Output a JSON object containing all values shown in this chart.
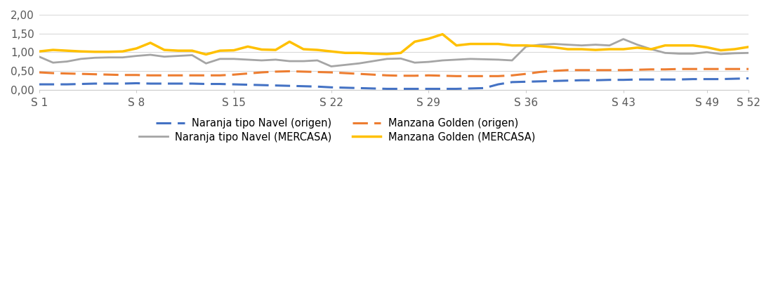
{
  "weeks": [
    1,
    2,
    3,
    4,
    5,
    6,
    7,
    8,
    9,
    10,
    11,
    12,
    13,
    14,
    15,
    16,
    17,
    18,
    19,
    20,
    21,
    22,
    23,
    24,
    25,
    26,
    27,
    28,
    29,
    30,
    31,
    32,
    33,
    34,
    35,
    36,
    37,
    38,
    39,
    40,
    41,
    42,
    43,
    44,
    45,
    46,
    47,
    48,
    49,
    50,
    51,
    52
  ],
  "naranja_origen": [
    0.14,
    0.14,
    0.14,
    0.15,
    0.16,
    0.16,
    0.16,
    0.17,
    0.16,
    0.16,
    0.16,
    0.16,
    0.15,
    0.15,
    0.14,
    0.13,
    0.12,
    0.11,
    0.1,
    0.09,
    0.08,
    0.06,
    0.05,
    0.04,
    0.03,
    0.02,
    0.02,
    0.02,
    0.02,
    0.02,
    0.02,
    0.03,
    0.04,
    0.14,
    0.2,
    0.21,
    0.22,
    0.23,
    0.24,
    0.25,
    0.25,
    0.26,
    0.26,
    0.27,
    0.27,
    0.27,
    0.27,
    0.28,
    0.28,
    0.28,
    0.29,
    0.3
  ],
  "manzana_origen": [
    0.46,
    0.44,
    0.43,
    0.42,
    0.41,
    0.4,
    0.39,
    0.39,
    0.38,
    0.38,
    0.38,
    0.38,
    0.38,
    0.38,
    0.4,
    0.43,
    0.46,
    0.48,
    0.49,
    0.48,
    0.47,
    0.46,
    0.44,
    0.42,
    0.4,
    0.38,
    0.37,
    0.37,
    0.38,
    0.37,
    0.36,
    0.36,
    0.36,
    0.36,
    0.38,
    0.42,
    0.47,
    0.5,
    0.52,
    0.52,
    0.52,
    0.52,
    0.52,
    0.53,
    0.54,
    0.54,
    0.55,
    0.55,
    0.55,
    0.55,
    0.55,
    0.55
  ],
  "naranja_mercasa": [
    0.88,
    0.72,
    0.75,
    0.82,
    0.85,
    0.86,
    0.86,
    0.9,
    0.93,
    0.88,
    0.9,
    0.92,
    0.7,
    0.82,
    0.82,
    0.8,
    0.78,
    0.8,
    0.76,
    0.76,
    0.78,
    0.62,
    0.66,
    0.7,
    0.76,
    0.82,
    0.83,
    0.72,
    0.74,
    0.78,
    0.8,
    0.82,
    0.81,
    0.8,
    0.78,
    1.15,
    1.2,
    1.22,
    1.2,
    1.18,
    1.2,
    1.18,
    1.35,
    1.2,
    1.08,
    0.98,
    0.96,
    0.96,
    1.0,
    0.95,
    0.97,
    0.98
  ],
  "manzana_mercasa": [
    1.02,
    1.06,
    1.04,
    1.02,
    1.01,
    1.01,
    1.02,
    1.1,
    1.25,
    1.06,
    1.04,
    1.04,
    0.94,
    1.04,
    1.05,
    1.15,
    1.07,
    1.06,
    1.28,
    1.08,
    1.06,
    1.02,
    0.98,
    0.98,
    0.96,
    0.95,
    0.98,
    1.28,
    1.36,
    1.48,
    1.18,
    1.22,
    1.22,
    1.22,
    1.18,
    1.18,
    1.16,
    1.13,
    1.08,
    1.08,
    1.06,
    1.08,
    1.08,
    1.12,
    1.08,
    1.18,
    1.18,
    1.18,
    1.13,
    1.05,
    1.08,
    1.14
  ],
  "naranja_origen_color": "#4472C4",
  "manzana_origen_color": "#ED7D31",
  "naranja_mercasa_color": "#A5A5A5",
  "manzana_mercasa_color": "#FFC000",
  "ylim": [
    0.0,
    2.0
  ],
  "yticks": [
    0.0,
    0.5,
    1.0,
    1.5,
    2.0
  ],
  "ytick_labels": [
    "0,00",
    "0,50",
    "1,00",
    "1,50",
    "2,00"
  ],
  "xtick_positions": [
    1,
    8,
    15,
    22,
    29,
    36,
    43,
    49,
    52
  ],
  "xtick_labels": [
    "S 1",
    "S 8",
    "S 15",
    "S 22",
    "S 29",
    "S 36",
    "S 43",
    "S 49",
    "S 52"
  ],
  "legend_naranja_origen": "Naranja tipo Navel (origen)",
  "legend_manzana_origen": "Manzana Golden (origen)",
  "legend_naranja_mercasa": "Naranja tipo Navel (MERCASA)",
  "legend_manzana_mercasa": "Manzana Golden (MERCASA)",
  "grid_color": "#D9D9D9",
  "background_color": "#FFFFFF"
}
